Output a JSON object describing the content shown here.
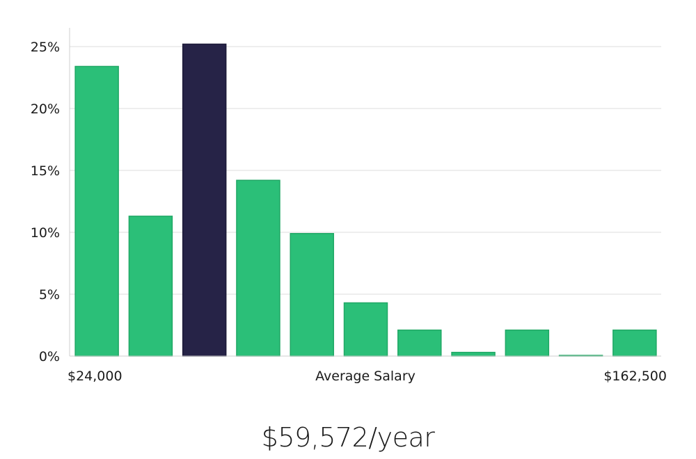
{
  "headline": "$59,572/year",
  "colors": {
    "bar": "#2bbf78",
    "bar_border": "#20a865",
    "highlight": "#262347"
  },
  "chart_data": {
    "type": "bar",
    "title": "",
    "xlabel": "Average Salary",
    "ylabel": "",
    "x_range_labels": {
      "min": "$24,000",
      "max": "$162,500"
    },
    "ylim": [
      0,
      25
    ],
    "yticks": [
      0,
      5,
      10,
      15,
      20,
      25
    ],
    "ytick_labels": [
      "0%",
      "5%",
      "10%",
      "15%",
      "20%",
      "25%"
    ],
    "grid": true,
    "values": [
      23.4,
      11.3,
      25.2,
      14.2,
      9.9,
      4.3,
      2.1,
      0.3,
      2.1,
      0.05,
      2.1
    ],
    "highlight_index": 2
  }
}
